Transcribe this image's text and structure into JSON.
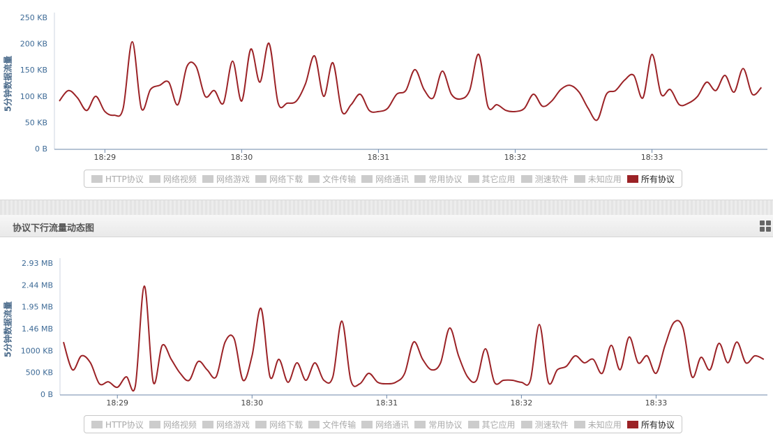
{
  "panel_title": "协议下行流量动态图",
  "chart_data": [
    {
      "type": "line",
      "y_label": "5分钟数据流量",
      "grid": false,
      "categories": [
        null,
        null,
        null,
        null,
        null,
        "18:29",
        null,
        null,
        null,
        null,
        null,
        null,
        null,
        null,
        null,
        null,
        null,
        null,
        null,
        null,
        "18:30",
        null,
        null,
        null,
        null,
        null,
        null,
        null,
        null,
        null,
        null,
        null,
        null,
        null,
        null,
        "18:31",
        null,
        null,
        null,
        null,
        null,
        null,
        null,
        null,
        null,
        null,
        null,
        null,
        null,
        null,
        "18:32",
        null,
        null,
        null,
        null,
        null,
        null,
        null,
        null,
        null,
        null,
        null,
        null,
        null,
        null,
        "18:33",
        null,
        null,
        null,
        null,
        null,
        null,
        null,
        null,
        null,
        null,
        null,
        null
      ],
      "ylim": [
        0,
        250
      ],
      "yticks": [
        {
          "value": 0,
          "label": "0 B"
        },
        {
          "value": 50,
          "label": "50 KB"
        },
        {
          "value": 100,
          "label": "100 KB"
        },
        {
          "value": 150,
          "label": "150 KB"
        },
        {
          "value": 200,
          "label": "200 KB"
        },
        {
          "value": 250,
          "label": "250 KB"
        }
      ],
      "inactive_color": "#cccccc",
      "hidden_series": [
        {
          "name": "HTTP协议"
        },
        {
          "name": "网络视频"
        },
        {
          "name": "网络游戏"
        },
        {
          "name": "网络下载"
        },
        {
          "name": "文件传输"
        },
        {
          "name": "网络通讯"
        },
        {
          "name": "常用协议"
        },
        {
          "name": "其它应用"
        },
        {
          "name": "测速软件"
        },
        {
          "name": "未知应用"
        }
      ],
      "series": [
        {
          "name": "所有协议",
          "color": "#9b2226",
          "values": [
            92,
            112,
            98,
            74,
            101,
            72,
            65,
            78,
            205,
            78,
            114,
            122,
            128,
            85,
            158,
            158,
            101,
            112,
            88,
            168,
            92,
            191,
            128,
            202,
            88,
            88,
            92,
            125,
            178,
            101,
            165,
            72,
            85,
            105,
            74,
            72,
            78,
            105,
            112,
            152,
            114,
            98,
            149,
            105,
            96,
            112,
            181,
            82,
            85,
            74,
            72,
            78,
            105,
            82,
            92,
            114,
            122,
            109,
            78,
            56,
            105,
            112,
            132,
            141,
            98,
            181,
            105,
            114,
            85,
            88,
            101,
            128,
            112,
            141,
            109,
            154,
            105,
            118
          ]
        }
      ]
    },
    {
      "type": "line",
      "y_label": "5分钟数据流量",
      "grid": false,
      "categories": [
        null,
        null,
        null,
        null,
        null,
        null,
        "18:29",
        null,
        null,
        null,
        null,
        null,
        null,
        null,
        null,
        null,
        null,
        null,
        null,
        null,
        null,
        "18:30",
        null,
        null,
        null,
        null,
        null,
        null,
        null,
        null,
        null,
        null,
        null,
        null,
        null,
        null,
        "18:31",
        null,
        null,
        null,
        null,
        null,
        null,
        null,
        null,
        null,
        null,
        null,
        null,
        null,
        null,
        "18:32",
        null,
        null,
        null,
        null,
        null,
        null,
        null,
        null,
        null,
        null,
        null,
        null,
        null,
        null,
        "18:33",
        null,
        null,
        null,
        null,
        null,
        null,
        null,
        null,
        null,
        null,
        null,
        null
      ],
      "ylim": [
        0,
        3000
      ],
      "yticks": [
        {
          "value": 0,
          "label": "0 B"
        },
        {
          "value": 500,
          "label": "500 KB"
        },
        {
          "value": 1000,
          "label": "1000 KB"
        },
        {
          "value": 1500,
          "label": "1.46 MB"
        },
        {
          "value": 2000,
          "label": "1.95 MB"
        },
        {
          "value": 2500,
          "label": "2.44 MB"
        },
        {
          "value": 3000,
          "label": "2.93 MB"
        }
      ],
      "inactive_color": "#cccccc",
      "hidden_series": [
        {
          "name": "HTTP协议"
        },
        {
          "name": "网络视频"
        },
        {
          "name": "网络游戏"
        },
        {
          "name": "网络下载"
        },
        {
          "name": "文件传输"
        },
        {
          "name": "网络通讯"
        },
        {
          "name": "常用协议"
        },
        {
          "name": "其它应用"
        },
        {
          "name": "测速软件"
        },
        {
          "name": "未知应用"
        }
      ],
      "series": [
        {
          "name": "所有协议",
          "color": "#9b2226",
          "values": [
            1210,
            575,
            895,
            735,
            255,
            300,
            175,
            415,
            205,
            2490,
            290,
            1135,
            815,
            495,
            335,
            765,
            575,
            415,
            1210,
            1290,
            335,
            895,
            1980,
            415,
            815,
            290,
            735,
            335,
            735,
            335,
            415,
            1690,
            335,
            255,
            495,
            290,
            255,
            290,
            495,
            1210,
            815,
            575,
            735,
            1530,
            895,
            415,
            335,
            1055,
            290,
            335,
            335,
            290,
            335,
            1610,
            290,
            575,
            655,
            895,
            735,
            815,
            495,
            1135,
            575,
            1325,
            735,
            895,
            495,
            1135,
            1660,
            1530,
            415,
            860,
            575,
            1180,
            735,
            1210,
            735,
            895,
            815
          ]
        }
      ]
    }
  ]
}
